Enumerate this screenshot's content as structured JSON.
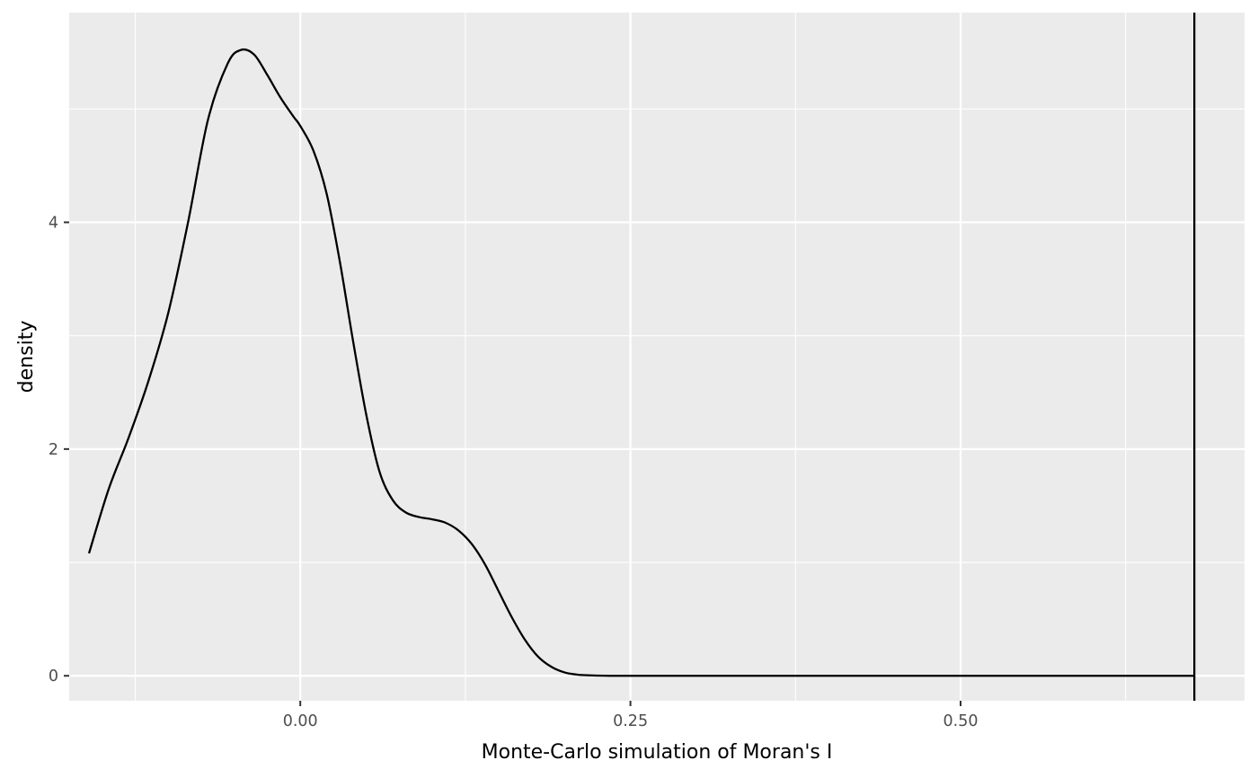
{
  "chart_data": {
    "type": "line",
    "title": "",
    "xlabel": "Monte-Carlo simulation of Moran's I",
    "ylabel": "density",
    "xlim": [
      -0.175,
      0.715
    ],
    "ylim": [
      -0.22,
      5.85
    ],
    "x_ticks": [
      {
        "value": 0.0,
        "label": "0.00"
      },
      {
        "value": 0.25,
        "label": "0.25"
      },
      {
        "value": 0.5,
        "label": "0.50"
      }
    ],
    "x_minor_ticks": [
      -0.125,
      0.125,
      0.375,
      0.625
    ],
    "y_ticks": [
      {
        "value": 0,
        "label": "0"
      },
      {
        "value": 2,
        "label": "2"
      },
      {
        "value": 4,
        "label": "4"
      }
    ],
    "y_minor_ticks": [
      1,
      3,
      5
    ],
    "grid": true,
    "background_color": "#ebebeb",
    "grid_color": "#ffffff",
    "line_color": "#000000",
    "series": [
      {
        "x": [
          -0.16,
          -0.145,
          -0.13,
          -0.115,
          -0.1,
          -0.085,
          -0.07,
          -0.055,
          -0.045,
          -0.035,
          -0.025,
          -0.015,
          -0.005,
          0.0,
          0.01,
          0.02,
          0.03,
          0.04,
          0.05,
          0.06,
          0.07,
          0.08,
          0.09,
          0.1,
          0.11,
          0.12,
          0.13,
          0.14,
          0.15,
          0.16,
          0.17,
          0.18,
          0.19,
          0.2,
          0.21,
          0.22,
          0.23,
          0.24,
          0.26,
          0.3,
          0.4,
          0.5,
          0.6,
          0.677
        ],
        "y": [
          1.08,
          1.65,
          2.1,
          2.6,
          3.2,
          4.0,
          4.9,
          5.4,
          5.52,
          5.48,
          5.3,
          5.1,
          4.93,
          4.85,
          4.63,
          4.25,
          3.65,
          2.95,
          2.3,
          1.8,
          1.55,
          1.44,
          1.4,
          1.38,
          1.35,
          1.28,
          1.16,
          0.98,
          0.75,
          0.52,
          0.32,
          0.17,
          0.08,
          0.03,
          0.01,
          0.004,
          0.001,
          0.0,
          0.0,
          0.0,
          0.0,
          0.0,
          0.0,
          0.0
        ]
      }
    ],
    "vline": {
      "x": 0.677
    }
  }
}
